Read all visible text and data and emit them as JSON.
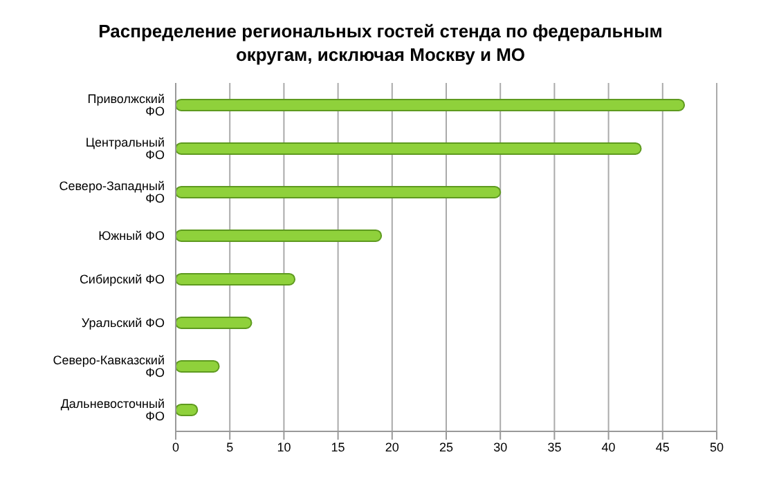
{
  "chart_data": {
    "type": "bar",
    "orientation": "horizontal",
    "title": "Распределение региональных гостей стенда по федеральным округам, исключая Москву и МО",
    "categories": [
      "Приволжский ФО",
      "Центральный ФО",
      "Северо-Западный ФО",
      "Южный ФО",
      "Сибирский ФО",
      "Уральский ФО",
      "Северо-Кавказский ФО",
      "Дальневосточный ФО"
    ],
    "values": [
      47,
      43,
      30,
      19,
      11,
      7,
      4,
      2
    ],
    "color": "#8fd13b",
    "xlim": [
      0,
      50
    ],
    "xticks": [
      0,
      5,
      10,
      15,
      20,
      25,
      30,
      35,
      40,
      45,
      50
    ],
    "grid": "x"
  }
}
